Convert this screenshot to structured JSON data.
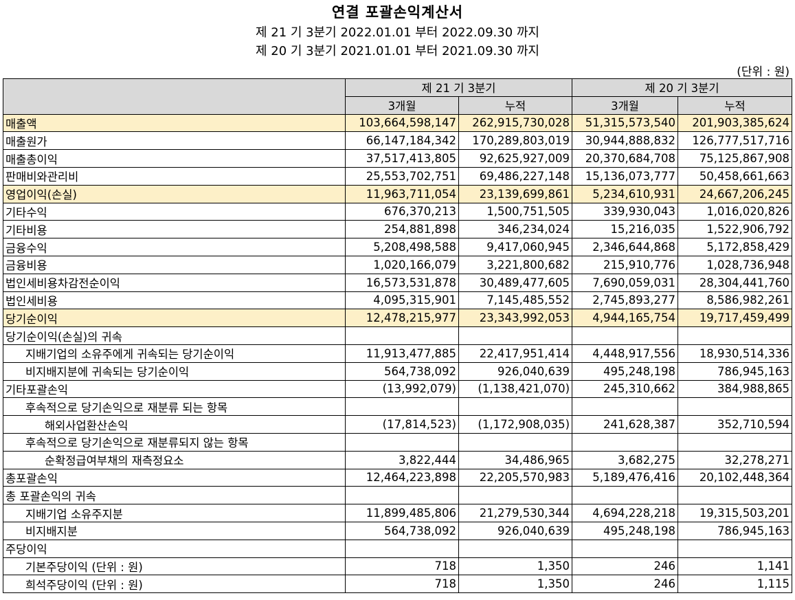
{
  "title": "연결 포괄손익계산서",
  "period_current": "제 21 기 3분기 2022.01.01 부터 2022.09.30 까지",
  "period_prior": "제 20 기 3분기 2021.01.01 부터 2021.09.30 까지",
  "unit": "(단위 : 원)",
  "header": {
    "group_current": "제 21 기 3분기",
    "group_prior": "제 20 기 3분기",
    "col_3m": "3개월",
    "col_cum": "누적"
  },
  "rows": [
    {
      "label": "매출액",
      "cur3m": "103,664,598,147",
      "curcum": "262,915,730,028",
      "pri3m": "51,315,573,540",
      "pricum": "201,903,385,624"
    },
    {
      "label": "매출원가",
      "cur3m": "66,147,184,342",
      "curcum": "170,289,803,019",
      "pri3m": "30,944,888,832",
      "pricum": "126,777,517,716"
    },
    {
      "label": "매출총이익",
      "cur3m": "37,517,413,805",
      "curcum": "92,625,927,009",
      "pri3m": "20,370,684,708",
      "pricum": "75,125,867,908"
    },
    {
      "label": "판매비와관리비",
      "cur3m": "25,553,702,751",
      "curcum": "69,486,227,148",
      "pri3m": "15,136,073,777",
      "pricum": "50,458,661,663"
    },
    {
      "label": "영업이익(손실)",
      "cur3m": "11,963,711,054",
      "curcum": "23,139,699,861",
      "pri3m": "5,234,610,931",
      "pricum": "24,667,206,245"
    },
    {
      "label": "기타수익",
      "cur3m": "676,370,213",
      "curcum": "1,500,751,505",
      "pri3m": "339,930,043",
      "pricum": "1,016,020,826"
    },
    {
      "label": "기타비용",
      "cur3m": "254,881,898",
      "curcum": "346,234,024",
      "pri3m": "15,216,035",
      "pricum": "1,522,906,792"
    },
    {
      "label": "금융수익",
      "cur3m": "5,208,498,588",
      "curcum": "9,417,060,945",
      "pri3m": "2,346,644,868",
      "pricum": "5,172,858,429"
    },
    {
      "label": "금융비용",
      "cur3m": "1,020,166,079",
      "curcum": "3,221,800,682",
      "pri3m": "215,910,776",
      "pricum": "1,028,736,948"
    },
    {
      "label": "법인세비용차감전순이익",
      "cur3m": "16,573,531,878",
      "curcum": "30,489,477,605",
      "pri3m": "7,690,059,031",
      "pricum": "28,304,441,760"
    },
    {
      "label": "법인세비용",
      "cur3m": "4,095,315,901",
      "curcum": "7,145,485,552",
      "pri3m": "2,745,893,277",
      "pricum": "8,586,982,261"
    },
    {
      "label": "당기순이익",
      "cur3m": "12,478,215,977",
      "curcum": "23,343,992,053",
      "pri3m": "4,944,165,754",
      "pricum": "19,717,459,499"
    },
    {
      "label": "당기순이익(손실)의 귀속",
      "cur3m": "",
      "curcum": "",
      "pri3m": "",
      "pricum": ""
    },
    {
      "label": "지배기업의 소유주에게 귀속되는 당기순이익",
      "cur3m": "11,913,477,885",
      "curcum": "22,417,951,414",
      "pri3m": "4,448,917,556",
      "pricum": "18,930,514,336"
    },
    {
      "label": "비지배지분에 귀속되는 당기순이익",
      "cur3m": "564,738,092",
      "curcum": "926,040,639",
      "pri3m": "495,248,198",
      "pricum": "786,945,163"
    },
    {
      "label": "기타포괄손익",
      "cur3m": "(13,992,079)",
      "curcum": "(1,138,421,070)",
      "pri3m": "245,310,662",
      "pricum": "384,988,865"
    },
    {
      "label": "후속적으로 당기손익으로 재분류 되는 항목",
      "cur3m": "",
      "curcum": "",
      "pri3m": "",
      "pricum": ""
    },
    {
      "label": "해외사업환산손익",
      "cur3m": "(17,814,523)",
      "curcum": "(1,172,908,035)",
      "pri3m": "241,628,387",
      "pricum": "352,710,594"
    },
    {
      "label": "후속적으로 당기손익으로 재분류되지 않는 항목",
      "cur3m": "",
      "curcum": "",
      "pri3m": "",
      "pricum": ""
    },
    {
      "label": "순확정급여부채의 재측정요소",
      "cur3m": "3,822,444",
      "curcum": "34,486,965",
      "pri3m": "3,682,275",
      "pricum": "32,278,271"
    },
    {
      "label": "총포괄손익",
      "cur3m": "12,464,223,898",
      "curcum": "22,205,570,983",
      "pri3m": "5,189,476,416",
      "pricum": "20,102,448,364"
    },
    {
      "label": "총 포괄손익의 귀속",
      "cur3m": "",
      "curcum": "",
      "pri3m": "",
      "pricum": ""
    },
    {
      "label": "지배기업 소유주지분",
      "cur3m": "11,899,485,806",
      "curcum": "21,279,530,344",
      "pri3m": "4,694,228,218",
      "pricum": "19,315,503,201"
    },
    {
      "label": "비지배지분",
      "cur3m": "564,738,092",
      "curcum": "926,040,639",
      "pri3m": "495,248,198",
      "pricum": "786,945,163"
    },
    {
      "label": "주당이익",
      "cur3m": "",
      "curcum": "",
      "pri3m": "",
      "pricum": ""
    },
    {
      "label": "기본주당이익 (단위 : 원)",
      "cur3m": "718",
      "curcum": "1,350",
      "pri3m": "246",
      "pricum": "1,141"
    },
    {
      "label": "희석주당이익 (단위 : 원)",
      "cur3m": "718",
      "curcum": "1,350",
      "pri3m": "246",
      "pricum": "1,115"
    }
  ],
  "colors": {
    "header_bg": "#d9d9d9",
    "highlight_bg": "#fdf0c8"
  }
}
